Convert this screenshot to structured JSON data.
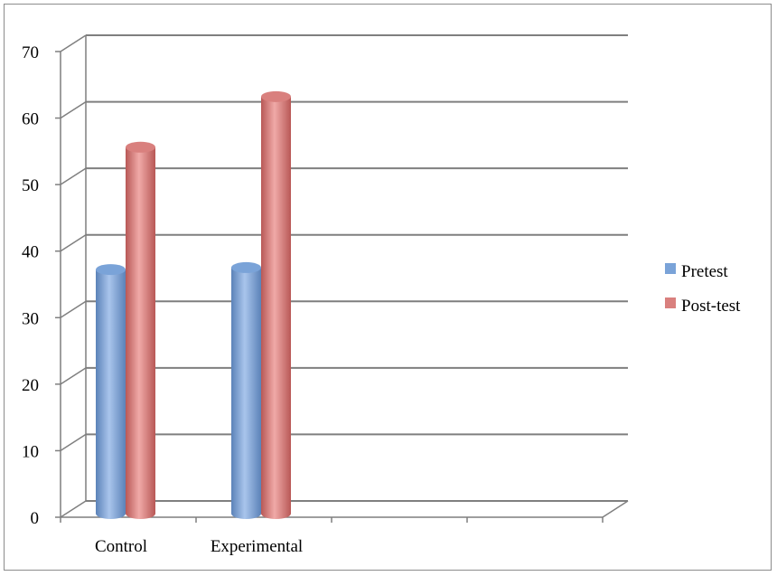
{
  "chart_data": {
    "type": "bar",
    "style": "3d-cylinder",
    "categories": [
      "Control",
      "Experimental",
      "",
      ""
    ],
    "series": [
      {
        "name": "Pretest",
        "values": [
          36,
          36.3,
          null,
          null
        ],
        "color": "#7aa3d8"
      },
      {
        "name": "Post-test",
        "values": [
          54.4,
          62,
          null,
          null
        ],
        "color": "#d9807e"
      }
    ],
    "ylim": [
      0,
      70
    ],
    "yticks": [
      0,
      10,
      20,
      30,
      40,
      50,
      60,
      70
    ],
    "grid": true,
    "legend_position": "right"
  }
}
